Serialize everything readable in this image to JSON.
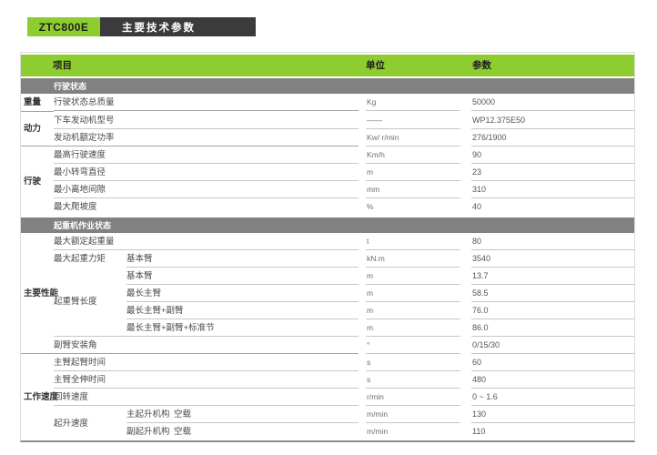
{
  "colors": {
    "green": "#8ECD30",
    "dark": "#3B3B3D",
    "band_gray": "#818181"
  },
  "title": {
    "model": "ZTC800E",
    "subtitle": "主要技术参数"
  },
  "table": {
    "headers": {
      "item": "项目",
      "unit": "单位",
      "value": "参数"
    },
    "sections": [
      {
        "name": "行驶状态",
        "groups": [
          {
            "label": "重量",
            "rows": [
              {
                "item": "行驶状态总质量",
                "unit": "Kg",
                "value": "50000",
                "sep": "full"
              }
            ]
          },
          {
            "label": "动力",
            "rows": [
              {
                "item": "下车发动机型号",
                "unit": "——",
                "value": "WP12.375E50",
                "sep": "item"
              },
              {
                "item": "发动机额定功率",
                "unit": "Kw/ r/min",
                "value": "276/1900",
                "sep": "full"
              }
            ]
          },
          {
            "label": "行驶",
            "rows": [
              {
                "item": "最高行驶速度",
                "unit": "Km/h",
                "value": "90",
                "sep": "item"
              },
              {
                "item": "最小转弯直径",
                "unit": "m",
                "value": "23",
                "sep": "item"
              },
              {
                "item": "最小离地间隙",
                "unit": "mm",
                "value": "310",
                "sep": "item"
              },
              {
                "item": "最大爬坡度",
                "unit": "%",
                "value": "40",
                "sep": "none"
              }
            ]
          }
        ]
      },
      {
        "name": "起重机作业状态",
        "groups": [
          {
            "label": "主要性能",
            "rows": [
              {
                "item": "最大额定起重量",
                "unit": "t",
                "value": "80",
                "sep": "item"
              },
              {
                "item": "最大起重力矩",
                "sub": "基本臂",
                "unit": "kN.m",
                "value": "3540",
                "sep": "sub"
              },
              {
                "item": "起重臂长度",
                "sub": "基本臂",
                "unit": "m",
                "value": "13.7",
                "sep": "sub"
              },
              {
                "cont": true,
                "sub": "最长主臂",
                "unit": "m",
                "value": "58.5",
                "sep": "sub"
              },
              {
                "cont": true,
                "sub": "最长主臂+副臂",
                "unit": "m",
                "value": "76.0",
                "sep": "sub"
              },
              {
                "cont": true,
                "sub": "最长主臂+副臂+标准节",
                "unit": "m",
                "value": "86.0",
                "sep": "item"
              },
              {
                "item": "副臂安装角",
                "unit": "°",
                "value": "0/15/30",
                "sep": "full"
              }
            ]
          },
          {
            "label": "工作速度",
            "rows": [
              {
                "item": "主臂起臂时间",
                "unit": "s",
                "value": "60",
                "sep": "item"
              },
              {
                "item": "主臂全伸时间",
                "unit": "s",
                "value": "480",
                "sep": "item"
              },
              {
                "item": "回转速度",
                "unit": "r/min",
                "value": "0 ~ 1.6",
                "sep": "item"
              },
              {
                "item": "起升速度",
                "sub": "主起升机构",
                "sub2": "空载",
                "unit": "m/min",
                "value": "130",
                "sep": "sub"
              },
              {
                "cont": true,
                "sub": "副起升机构",
                "sub2": "空载",
                "unit": "m/min",
                "value": "110",
                "sep": "none"
              }
            ]
          }
        ]
      }
    ]
  }
}
